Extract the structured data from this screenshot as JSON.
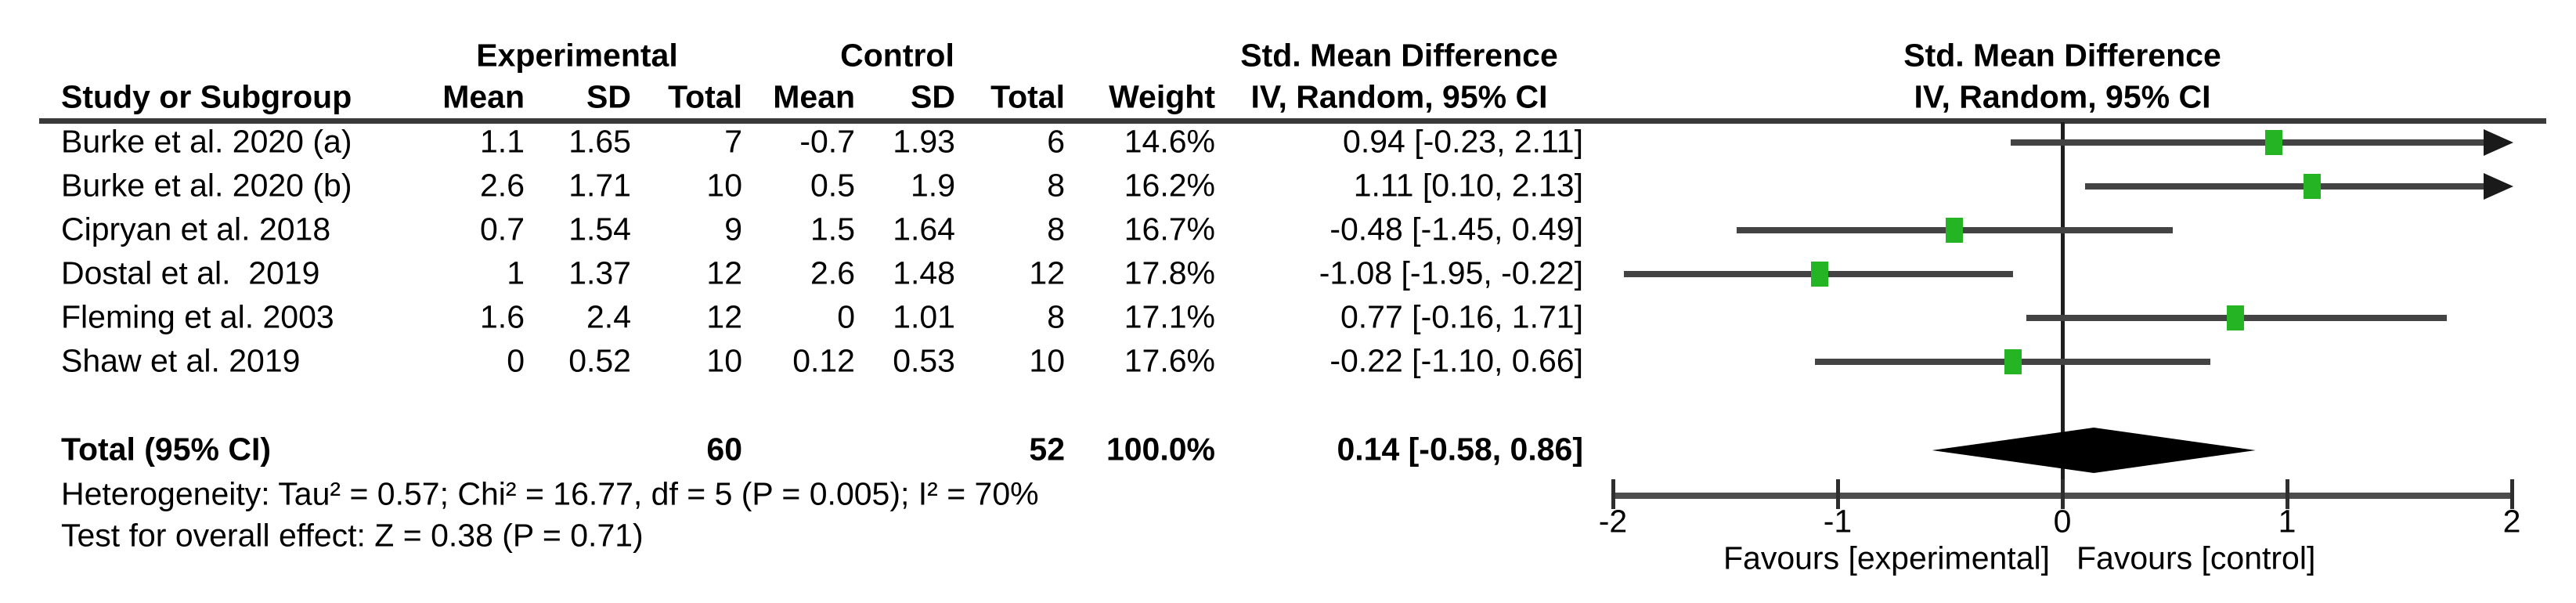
{
  "title_headers": {
    "experimental": "Experimental",
    "control": "Control",
    "smd_table": "Std. Mean Difference",
    "smd_table_sub": "IV, Random, 95% CI",
    "smd_plot": "Std. Mean Difference",
    "smd_plot_sub": "IV, Random, 95% CI"
  },
  "column_headers": {
    "study": "Study or Subgroup",
    "exp_mean": "Mean",
    "exp_sd": "SD",
    "exp_total": "Total",
    "ctrl_mean": "Mean",
    "ctrl_sd": "SD",
    "ctrl_total": "Total",
    "weight": "Weight"
  },
  "chart_data": {
    "type": "forest",
    "effect_measure": "Std. Mean Difference",
    "method": "IV, Random, 95% CI",
    "axis": {
      "min": -2,
      "max": 2,
      "tick_values": [
        -2,
        -1,
        0,
        1,
        2
      ],
      "tick_labels": [
        "-2",
        "-1",
        "0",
        "1",
        "2"
      ],
      "favours_left": "Favours [experimental]",
      "favours_right": "Favours [control]"
    },
    "studies": [
      {
        "label": "Burke et al. 2020 (a)",
        "exp_mean": "1.1",
        "exp_sd": "1.65",
        "exp_total": "7",
        "ctrl_mean": "-0.7",
        "ctrl_sd": "1.93",
        "ctrl_total": "6",
        "weight": "14.6%",
        "ci_text": "0.94 [-0.23, 2.11]",
        "smd": 0.94,
        "ci_low": -0.23,
        "ci_high": 2.11
      },
      {
        "label": "Burke et al. 2020 (b)",
        "exp_mean": "2.6",
        "exp_sd": "1.71",
        "exp_total": "10",
        "ctrl_mean": "0.5",
        "ctrl_sd": "1.9",
        "ctrl_total": "8",
        "weight": "16.2%",
        "ci_text": "1.11 [0.10, 2.13]",
        "smd": 1.11,
        "ci_low": 0.1,
        "ci_high": 2.13
      },
      {
        "label": "Cipryan et al. 2018",
        "exp_mean": "0.7",
        "exp_sd": "1.54",
        "exp_total": "9",
        "ctrl_mean": "1.5",
        "ctrl_sd": "1.64",
        "ctrl_total": "8",
        "weight": "16.7%",
        "ci_text": "-0.48 [-1.45, 0.49]",
        "smd": -0.48,
        "ci_low": -1.45,
        "ci_high": 0.49
      },
      {
        "label": "Dostal et al.  2019",
        "exp_mean": "1",
        "exp_sd": "1.37",
        "exp_total": "12",
        "ctrl_mean": "2.6",
        "ctrl_sd": "1.48",
        "ctrl_total": "12",
        "weight": "17.8%",
        "ci_text": "-1.08 [-1.95, -0.22]",
        "smd": -1.08,
        "ci_low": -1.95,
        "ci_high": -0.22
      },
      {
        "label": "Fleming et al. 2003",
        "exp_mean": "1.6",
        "exp_sd": "2.4",
        "exp_total": "12",
        "ctrl_mean": "0",
        "ctrl_sd": "1.01",
        "ctrl_total": "8",
        "weight": "17.1%",
        "ci_text": "0.77 [-0.16, 1.71]",
        "smd": 0.77,
        "ci_low": -0.16,
        "ci_high": 1.71
      },
      {
        "label": "Shaw et al. 2019",
        "exp_mean": "0",
        "exp_sd": "0.52",
        "exp_total": "10",
        "ctrl_mean": "0.12",
        "ctrl_sd": "0.53",
        "ctrl_total": "10",
        "weight": "17.6%",
        "ci_text": "-0.22 [-1.10, 0.66]",
        "smd": -0.22,
        "ci_low": -1.1,
        "ci_high": 0.66
      }
    ],
    "total": {
      "label": "Total (95% CI)",
      "exp_total": "60",
      "ctrl_total": "52",
      "weight": "100.0%",
      "ci_text": "0.14 [-0.58, 0.86]",
      "smd": 0.14,
      "ci_low": -0.58,
      "ci_high": 0.86
    },
    "footnotes": {
      "heterogeneity": "Heterogeneity: Tau² = 0.57; Chi² = 16.77, df = 5 (P = 0.005); I² = 70%",
      "overall_effect": "Test for overall effect: Z = 0.38 (P = 0.71)"
    }
  },
  "colors": {
    "marker_green": "#24b424",
    "diamond_black": "#000000",
    "ci_line": "#434343",
    "axis_line": "#4d4d4d"
  }
}
